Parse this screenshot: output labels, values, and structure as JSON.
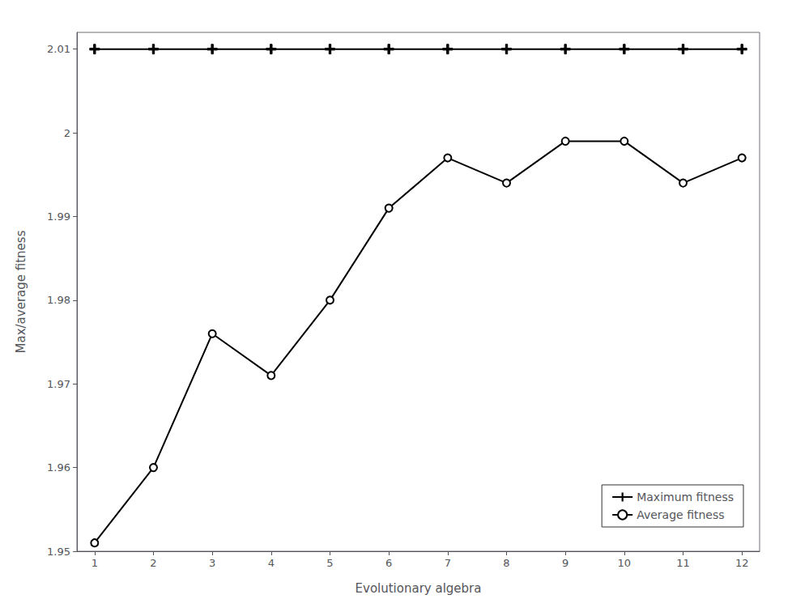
{
  "chart_data": {
    "type": "line",
    "xlabel": "Evolutionary algebra",
    "ylabel": "Max/average fitness",
    "x": [
      1,
      2,
      3,
      4,
      5,
      6,
      7,
      8,
      9,
      10,
      11,
      12
    ],
    "series": [
      {
        "name": "Maximum fitness",
        "color": "#000000",
        "marker": "plus",
        "values": [
          2.01,
          2.01,
          2.01,
          2.01,
          2.01,
          2.01,
          2.01,
          2.01,
          2.01,
          2.01,
          2.01,
          2.01
        ]
      },
      {
        "name": "Average fitness",
        "color": "#000000",
        "marker": "circle",
        "values": [
          1.951,
          1.96,
          1.976,
          1.971,
          1.98,
          1.991,
          1.997,
          1.994,
          1.999,
          1.999,
          1.994,
          1.997
        ]
      }
    ],
    "xlim": [
      0.7,
      12.3
    ],
    "xticks": [
      1,
      2,
      3,
      4,
      5,
      6,
      7,
      8,
      9,
      10,
      11,
      12
    ],
    "ylim": [
      1.95,
      2.012
    ],
    "yticks": [
      1.95,
      1.96,
      1.97,
      1.98,
      1.99,
      2,
      2.01
    ],
    "grid": false,
    "legend": "lower right"
  }
}
